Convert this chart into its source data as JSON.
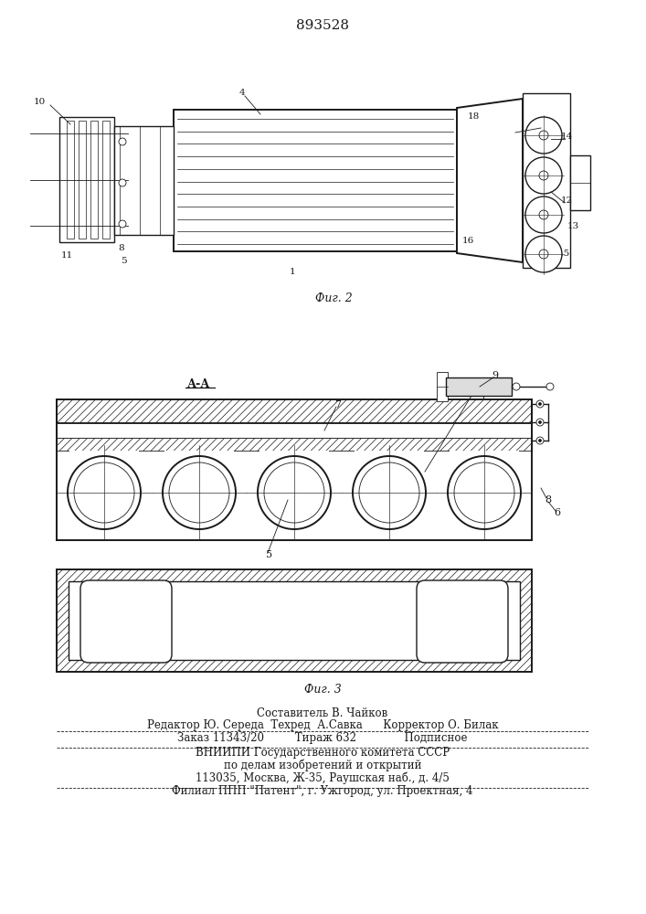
{
  "title": "893528",
  "bg_color": "#ffffff",
  "line_color": "#1a1a1a",
  "fig2_label": "Фиг. 2",
  "fig3_label": "Фиг. 3",
  "section_label": "А-А",
  "footer_lines": [
    "Составитель В. Чайков",
    "Редактор Ю. Середа  Техред  А.Савка      Корректор О. Билак",
    "Заказ 11343/20         Тираж 632              Подписное",
    "ВНИИПИ Государственного комитета СССР",
    "по делам изобретений и открытий",
    "113035, Москва, Ж-35, Раушская наб., д. 4/5",
    "Филиал ППП \"Патент\", г. Ужгород, ул. Проектная, 4"
  ]
}
